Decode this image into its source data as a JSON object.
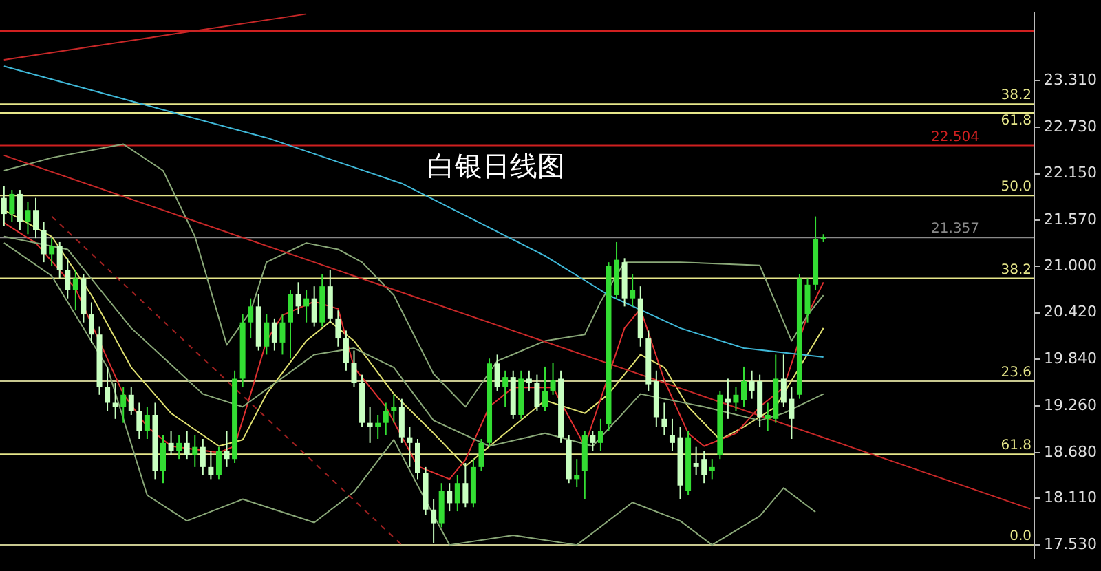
{
  "chart_data": {
    "type": "candlestick",
    "title": "白银日线图",
    "colors": [
      "#c8ffc0",
      "#33dd33",
      "#c8ffc0",
      "#33dd33",
      "#c8ffc0",
      "#c8ffc0",
      "#33dd33",
      "#c8ffc0",
      "#c8ffc0",
      "#33dd33",
      "#c8ffc0",
      "#c8ffc0",
      "#c8ffc0",
      "#c8ffc0",
      "#c8ffc0",
      "#33dd33",
      "#c8ffc0",
      "#c8ffc0",
      "#33dd33",
      "#c8ffc0",
      "#33dd33",
      "#c8ffc0",
      "#33dd33",
      "#c8ffc0",
      "#33dd33",
      "#c8ffc0",
      "#c8ffc0",
      "#33dd33",
      "#c8ffc0",
      "#33dd33",
      "#33dd33",
      "#33dd33",
      "#c8ffc0",
      "#33dd33",
      "#c8ffc0",
      "#33dd33",
      "#33dd33",
      "#c8ffc0",
      "#33dd33",
      "#c8ffc0",
      "#33dd33",
      "#c8ffc0",
      "#c8ffc0",
      "#c8ffc0",
      "#c8ffc0",
      "#c8ffc0",
      "#c8ffc0",
      "#33dd33",
      "#33dd33",
      "#33dd33",
      "#c8ffc0",
      "#c8ffc0",
      "#c8ffc0",
      "#c8ffc0",
      "#c8ffc0",
      "#33dd33",
      "#c8ffc0",
      "#33dd33",
      "#c8ffc0",
      "#33dd33",
      "#33dd33",
      "#33dd33",
      "#c8ffc0",
      "#33dd33",
      "#c8ffc0",
      "#33dd33",
      "#c8ffc0",
      "#c8ffc0",
      "#33dd33",
      "#33dd33",
      "#c8ffc0",
      "#c8ffc0",
      "#33dd33",
      "#33dd33",
      "#c8ffc0",
      "#33dd33",
      "#33dd33",
      "#33dd33",
      "#c8ffc0",
      "#33dd33",
      "#c8ffc0",
      "#c8ffc0",
      "#c8ffc0",
      "#c8ffc0",
      "#c8ffc0",
      "#c8ffc0",
      "#33dd33",
      "#c8ffc0",
      "#c8ffc0",
      "#33dd33",
      "#33dd33",
      "#c8ffc0",
      "#33dd33",
      "#33dd33",
      "#c8ffc0",
      "#c8ffc0",
      "#33dd33",
      "#33dd33",
      "#c8ffc0",
      "#c8ffc0",
      "#33dd33",
      "#33dd33",
      "#33dd33",
      "#33dd33",
      null,
      null,
      null,
      null,
      null,
      null,
      null,
      null,
      null,
      null,
      null,
      null,
      null,
      null,
      null,
      null,
      null,
      null,
      null,
      null,
      null,
      null,
      null,
      null,
      null,
      null
    ],
    "tick_labels": "y",
    "marker": "none",
    "categories": [
      null,
      null,
      null,
      null,
      null,
      null,
      null,
      null,
      null,
      null,
      null,
      null,
      null,
      null,
      null,
      null,
      null,
      null,
      null,
      null,
      null,
      null,
      null,
      null,
      null,
      null,
      null,
      null,
      null,
      null,
      null,
      null,
      null,
      null,
      null,
      null,
      null,
      null,
      null,
      null,
      null,
      null,
      null,
      null,
      null,
      null,
      null,
      null,
      null,
      null,
      null,
      null,
      null,
      null,
      null,
      null,
      null,
      null,
      null,
      null,
      null,
      null,
      null,
      null,
      null,
      null,
      null,
      null,
      null,
      null,
      null,
      null,
      null,
      null,
      null,
      null,
      null,
      null,
      null,
      null,
      null,
      null,
      null,
      null,
      null,
      null,
      null,
      null,
      null,
      null,
      null,
      null,
      null,
      null,
      null,
      null,
      null,
      null,
      null,
      null,
      null,
      null,
      null,
      null,
      null,
      null,
      null,
      null,
      null,
      null,
      null,
      null,
      null,
      null,
      null,
      null,
      null,
      null,
      null,
      null,
      null,
      null,
      null,
      null,
      null,
      null,
      null,
      null,
      null,
      null
    ],
    "ohlc": [
      [
        21.85,
        22.0,
        21.5,
        21.65
      ],
      [
        21.65,
        21.95,
        21.55,
        21.9
      ],
      [
        21.9,
        21.95,
        21.45,
        21.55
      ],
      [
        21.55,
        21.8,
        21.4,
        21.7
      ],
      [
        21.7,
        21.85,
        21.35,
        21.45
      ],
      [
        21.45,
        21.55,
        21.05,
        21.15
      ],
      [
        21.15,
        21.35,
        21.0,
        21.25
      ],
      [
        21.25,
        21.3,
        20.85,
        20.95
      ],
      [
        20.95,
        21.1,
        20.6,
        20.7
      ],
      [
        20.7,
        20.95,
        20.45,
        20.85
      ],
      [
        20.85,
        20.9,
        20.3,
        20.4
      ],
      [
        20.4,
        20.55,
        20.05,
        20.15
      ],
      [
        20.15,
        20.25,
        19.4,
        19.5
      ],
      [
        19.5,
        19.75,
        19.2,
        19.3
      ],
      [
        19.3,
        19.55,
        19.1,
        19.25
      ],
      [
        19.25,
        19.5,
        19.05,
        19.4
      ],
      [
        19.4,
        19.5,
        19.15,
        19.2
      ],
      [
        19.2,
        19.3,
        18.85,
        18.95
      ],
      [
        18.95,
        19.25,
        18.85,
        19.15
      ],
      [
        19.15,
        19.3,
        18.35,
        18.45
      ],
      [
        18.45,
        18.9,
        18.3,
        18.8
      ],
      [
        18.8,
        18.95,
        18.65,
        18.7
      ],
      [
        18.7,
        18.9,
        18.6,
        18.8
      ],
      [
        18.8,
        18.95,
        18.6,
        18.65
      ],
      [
        18.65,
        18.9,
        18.5,
        18.75
      ],
      [
        18.75,
        18.85,
        18.4,
        18.5
      ],
      [
        18.5,
        18.7,
        18.35,
        18.4
      ],
      [
        18.4,
        18.75,
        18.35,
        18.7
      ],
      [
        18.7,
        18.95,
        18.5,
        18.6
      ],
      [
        18.6,
        19.7,
        18.55,
        19.6
      ],
      [
        19.6,
        20.4,
        19.5,
        20.3
      ],
      [
        20.3,
        20.6,
        20.1,
        20.5
      ],
      [
        20.5,
        20.65,
        19.95,
        20.0
      ],
      [
        20.0,
        20.4,
        19.9,
        20.3
      ],
      [
        20.3,
        20.35,
        19.95,
        20.05
      ],
      [
        20.05,
        20.4,
        19.9,
        20.3
      ],
      [
        20.3,
        20.7,
        19.85,
        20.65
      ],
      [
        20.65,
        20.8,
        20.4,
        20.5
      ],
      [
        20.5,
        20.7,
        20.3,
        20.6
      ],
      [
        20.6,
        20.75,
        20.25,
        20.3
      ],
      [
        20.3,
        20.9,
        20.25,
        20.75
      ],
      [
        20.75,
        20.95,
        20.3,
        20.35
      ],
      [
        20.35,
        20.45,
        20.0,
        20.1
      ],
      [
        20.1,
        20.2,
        19.7,
        19.8
      ],
      [
        19.8,
        19.95,
        19.5,
        19.55
      ],
      [
        19.55,
        19.65,
        19.0,
        19.05
      ],
      [
        19.05,
        19.25,
        18.8,
        19.0
      ],
      [
        19.0,
        19.15,
        18.85,
        19.05
      ],
      [
        19.05,
        19.3,
        18.9,
        19.2
      ],
      [
        19.2,
        19.4,
        19.05,
        19.25
      ],
      [
        19.25,
        19.35,
        18.8,
        18.87
      ],
      [
        18.87,
        19.0,
        18.5,
        18.8
      ],
      [
        18.8,
        18.85,
        18.35,
        18.43
      ],
      [
        18.43,
        18.5,
        17.9,
        17.97
      ],
      [
        17.97,
        18.1,
        17.55,
        17.8
      ],
      [
        17.8,
        18.3,
        17.75,
        18.2
      ],
      [
        18.2,
        18.3,
        17.95,
        18.05
      ],
      [
        18.05,
        18.4,
        17.95,
        18.3
      ],
      [
        18.3,
        18.55,
        18.0,
        18.05
      ],
      [
        18.05,
        18.6,
        18.0,
        18.5
      ],
      [
        18.5,
        18.85,
        18.45,
        18.8
      ],
      [
        18.8,
        19.85,
        18.75,
        19.79
      ],
      [
        19.79,
        19.9,
        19.45,
        19.5
      ],
      [
        19.5,
        19.7,
        19.25,
        19.62
      ],
      [
        19.62,
        19.7,
        19.1,
        19.15
      ],
      [
        19.15,
        19.7,
        19.1,
        19.6
      ],
      [
        19.6,
        19.7,
        19.45,
        19.55
      ],
      [
        19.55,
        19.65,
        19.2,
        19.25
      ],
      [
        19.25,
        19.75,
        19.2,
        19.45
      ],
      [
        19.45,
        19.8,
        19.4,
        19.58
      ],
      [
        19.6,
        19.7,
        18.8,
        18.87
      ],
      [
        18.84,
        18.9,
        18.3,
        18.35
      ],
      [
        18.35,
        18.6,
        18.25,
        18.4
      ],
      [
        18.45,
        18.95,
        18.1,
        18.9
      ],
      [
        18.9,
        18.95,
        18.7,
        18.8
      ],
      [
        18.8,
        19.1,
        18.7,
        18.95
      ],
      [
        19.03,
        21.05,
        18.95,
        21.0
      ],
      [
        20.64,
        21.3,
        20.6,
        21.08
      ],
      [
        21.05,
        21.1,
        20.5,
        20.6
      ],
      [
        20.6,
        20.9,
        20.5,
        20.7
      ],
      [
        20.6,
        20.75,
        20.0,
        20.1
      ],
      [
        20.1,
        20.2,
        19.45,
        19.53
      ],
      [
        19.57,
        19.7,
        19.0,
        19.12
      ],
      [
        19.1,
        19.3,
        18.9,
        19.0
      ],
      [
        18.9,
        19.1,
        18.7,
        18.8
      ],
      [
        18.87,
        19.0,
        18.1,
        18.27
      ],
      [
        18.2,
        18.95,
        18.15,
        18.87
      ],
      [
        18.55,
        18.75,
        18.4,
        18.5
      ],
      [
        18.6,
        18.7,
        18.3,
        18.4
      ],
      [
        18.45,
        18.6,
        18.35,
        18.5
      ],
      [
        18.65,
        19.45,
        18.6,
        19.4
      ],
      [
        19.35,
        19.6,
        19.1,
        19.3
      ],
      [
        19.3,
        19.5,
        19.2,
        19.4
      ],
      [
        19.33,
        19.75,
        19.25,
        19.57
      ],
      [
        19.57,
        19.7,
        19.35,
        19.45
      ],
      [
        19.57,
        19.65,
        19.0,
        19.12
      ],
      [
        19.1,
        19.3,
        18.95,
        19.15
      ],
      [
        19.1,
        19.9,
        19.05,
        19.6
      ],
      [
        19.6,
        19.9,
        19.25,
        19.3
      ],
      [
        19.35,
        19.5,
        18.85,
        19.1
      ],
      [
        19.4,
        20.9,
        19.35,
        20.85
      ],
      [
        20.4,
        20.85,
        20.3,
        20.77
      ],
      [
        20.77,
        21.62,
        20.7,
        21.34
      ],
      [
        21.357,
        21.4,
        21.3,
        21.357
      ],
      null,
      null,
      null,
      null,
      null,
      null,
      null,
      null,
      null,
      null,
      null,
      null,
      null,
      null,
      null,
      null,
      null,
      null,
      null,
      null,
      null,
      null,
      null,
      null,
      null,
      null
    ],
    "series": [
      {
        "type": "line",
        "color": "#3fb8d8",
        "values": [
          23.49,
          null,
          null,
          null,
          null,
          null,
          null,
          null,
          null,
          null,
          null,
          null,
          null,
          null,
          null,
          null,
          null,
          null,
          null,
          null,
          null,
          22.92,
          null,
          null,
          null,
          null,
          null,
          null,
          null,
          null,
          null,
          null,
          null,
          22.6,
          null,
          null,
          null,
          null,
          null,
          null,
          null,
          null,
          null,
          null,
          null,
          null,
          null,
          null,
          null,
          null,
          22.03,
          null,
          null,
          null,
          null,
          null,
          null,
          null,
          null,
          null,
          null,
          null,
          null,
          null,
          null,
          null,
          null,
          null,
          21.13,
          null,
          null,
          null,
          null,
          null,
          null,
          null,
          20.64,
          null,
          null,
          null,
          null,
          null,
          null,
          null,
          null,
          20.23,
          null,
          null,
          null,
          null,
          null,
          null,
          null,
          19.98,
          null,
          null,
          null,
          null,
          null,
          null,
          null,
          null,
          null,
          19.87,
          null,
          null,
          null,
          null,
          null,
          null,
          null,
          null,
          null,
          null,
          null,
          null,
          null,
          null,
          null,
          null,
          null,
          null,
          null,
          null,
          null,
          null,
          null,
          null,
          null,
          null
        ]
      },
      {
        "type": "line",
        "color": "#c82828",
        "values": [
          22.38,
          null,
          null,
          null,
          null,
          null,
          null,
          null,
          null,
          null,
          null,
          null,
          null,
          null,
          null,
          null,
          null,
          null,
          null,
          null,
          null,
          null,
          null,
          null,
          null,
          null,
          null,
          null,
          null,
          null,
          null,
          null,
          null,
          null,
          null,
          null,
          null,
          null,
          null,
          null,
          null,
          null,
          null,
          null,
          null,
          null,
          null,
          null,
          null,
          null,
          null,
          null,
          null,
          null,
          null,
          null,
          null,
          null,
          null,
          null,
          null,
          null,
          null,
          null,
          null,
          null,
          null,
          null,
          null,
          null,
          null,
          null,
          null,
          null,
          null,
          null,
          null,
          null,
          null,
          null,
          null,
          null,
          null,
          null,
          null,
          null,
          null,
          null,
          null,
          null,
          null,
          null,
          null,
          null,
          null,
          null,
          null,
          null,
          null,
          null,
          null,
          null,
          null,
          null,
          null,
          null,
          null,
          null,
          null,
          null,
          null,
          null,
          null,
          null,
          null,
          null,
          null,
          null,
          null,
          null,
          null,
          null,
          null,
          null,
          null,
          null,
          null,
          null,
          null,
          17.98
        ]
      },
      {
        "type": "line",
        "color": "#c82828",
        "values": [
          23.57,
          null,
          null,
          null,
          null,
          null,
          null,
          null,
          null,
          null,
          null,
          null,
          null,
          null,
          null,
          null,
          null,
          null,
          null,
          null,
          null,
          null,
          null,
          null,
          null,
          null,
          null,
          null,
          null,
          null,
          null,
          null,
          null,
          null,
          null,
          null,
          null,
          null,
          24.14,
          null,
          null,
          null,
          null,
          null,
          null,
          null,
          null,
          null,
          null,
          null,
          null,
          null,
          null,
          null,
          null,
          null,
          null,
          null,
          null,
          null,
          null,
          null,
          null,
          null,
          null,
          null,
          null,
          null,
          null,
          null,
          null,
          null,
          null,
          null,
          null,
          null,
          null,
          null,
          null,
          null,
          null,
          null,
          null,
          null,
          null,
          null,
          null,
          null,
          null,
          null,
          null,
          null,
          null,
          null,
          null,
          null,
          null,
          null,
          null,
          null,
          null,
          null,
          null,
          null,
          null,
          null,
          null,
          null,
          null,
          null,
          null,
          null,
          null,
          null,
          null,
          null,
          null,
          null,
          null,
          null,
          null,
          null,
          null,
          null,
          null,
          null,
          null,
          null,
          null,
          null
        ]
      },
      {
        "type": "line",
        "color": "#a02020",
        "line_style": "dashed",
        "values": [
          null,
          null,
          null,
          null,
          null,
          null,
          21.62,
          null,
          null,
          null,
          null,
          null,
          null,
          null,
          null,
          null,
          null,
          null,
          null,
          null,
          null,
          null,
          null,
          null,
          null,
          null,
          null,
          null,
          null,
          null,
          null,
          null,
          null,
          null,
          null,
          null,
          null,
          null,
          null,
          null,
          null,
          null,
          null,
          null,
          null,
          null,
          null,
          null,
          null,
          null,
          17.53,
          null,
          null,
          null,
          null,
          null,
          null,
          null,
          null,
          null,
          null,
          null,
          null,
          null,
          null,
          null,
          null,
          null,
          null,
          null,
          null,
          null,
          null,
          null,
          null,
          null,
          null,
          null,
          null,
          null,
          null,
          null,
          null,
          null,
          null,
          null,
          null,
          null,
          null,
          null,
          null,
          null,
          null,
          null,
          null,
          null,
          null,
          null,
          null,
          null,
          null,
          null,
          null,
          null,
          null,
          null,
          null,
          null,
          null,
          null,
          null,
          null,
          null,
          null,
          null,
          null,
          null,
          null,
          null,
          null,
          null,
          null,
          null,
          null,
          null,
          null,
          null,
          null,
          null,
          null
        ]
      },
      {
        "type": "line",
        "color": "#8aa878",
        "values": [
          22.19,
          null,
          null,
          null,
          null,
          null,
          22.35,
          null,
          null,
          null,
          null,
          null,
          null,
          null,
          null,
          22.52,
          null,
          null,
          null,
          null,
          22.19,
          null,
          null,
          null,
          21.37,
          null,
          null,
          null,
          20.02,
          null,
          null,
          20.44,
          null,
          21.05,
          null,
          null,
          null,
          null,
          21.29,
          null,
          null,
          null,
          21.21,
          null,
          null,
          21.05,
          null,
          null,
          null,
          20.64,
          null,
          null,
          null,
          null,
          19.66,
          null,
          null,
          null,
          19.25,
          null,
          null,
          null,
          19.82,
          null,
          null,
          null,
          null,
          null,
          20.07,
          null,
          null,
          null,
          null,
          20.15,
          null,
          20.56,
          null,
          null,
          21.05,
          null,
          null,
          null,
          null,
          null,
          null,
          21.05,
          null,
          null,
          null,
          null,
          null,
          null,
          null,
          null,
          null,
          21.01,
          null,
          null,
          null,
          20.07,
          null,
          20.39,
          null,
          20.64,
          null,
          null,
          null,
          null,
          null,
          null,
          null,
          null,
          null,
          null,
          null,
          null,
          null,
          null,
          null,
          null,
          null,
          null,
          null,
          null,
          null,
          null,
          null,
          null,
          null,
          null
        ]
      },
      {
        "type": "line",
        "color": "#8aa878",
        "values": [
          21.29,
          null,
          null,
          null,
          null,
          null,
          20.88,
          null,
          null,
          null,
          null,
          null,
          null,
          19.74,
          null,
          null,
          null,
          null,
          18.15,
          null,
          null,
          null,
          null,
          17.83,
          null,
          null,
          null,
          null,
          null,
          null,
          18.1,
          null,
          null,
          null,
          null,
          null,
          null,
          null,
          null,
          17.81,
          null,
          null,
          null,
          null,
          18.19,
          null,
          null,
          null,
          null,
          18.84,
          null,
          null,
          18.27,
          null,
          null,
          null,
          17.53,
          null,
          null,
          null,
          null,
          null,
          null,
          null,
          17.65,
          null,
          null,
          null,
          null,
          null,
          null,
          null,
          17.53,
          null,
          null,
          null,
          null,
          null,
          null,
          18.06,
          null,
          null,
          null,
          null,
          null,
          17.83,
          null,
          null,
          null,
          17.53,
          null,
          null,
          null,
          null,
          null,
          17.89,
          null,
          null,
          18.24,
          null,
          null,
          null,
          17.94,
          null,
          null,
          null,
          null,
          null,
          null,
          null,
          null,
          null,
          null,
          null,
          null,
          null,
          null,
          null,
          null,
          null,
          null,
          null,
          null,
          null,
          null,
          null,
          null,
          null,
          null,
          null
        ]
      },
      {
        "type": "line",
        "color": "#8aa878",
        "values": [
          21.37,
          null,
          null,
          null,
          null,
          null,
          null,
          null,
          21.21,
          null,
          null,
          null,
          null,
          null,
          null,
          null,
          20.23,
          null,
          null,
          null,
          null,
          null,
          null,
          null,
          null,
          19.41,
          null,
          null,
          null,
          null,
          19.25,
          null,
          null,
          null,
          null,
          null,
          null,
          null,
          null,
          19.9,
          null,
          null,
          null,
          null,
          19.98,
          null,
          null,
          null,
          null,
          19.74,
          null,
          null,
          null,
          null,
          19.08,
          null,
          null,
          null,
          null,
          null,
          null,
          18.76,
          null,
          null,
          null,
          null,
          null,
          null,
          18.92,
          null,
          null,
          null,
          null,
          null,
          18.76,
          null,
          null,
          null,
          null,
          null,
          19.41,
          null,
          null,
          null,
          null,
          null,
          null,
          null,
          19.25,
          null,
          null,
          null,
          null,
          null,
          null,
          19.08,
          null,
          null,
          19.17,
          null,
          null,
          null,
          null,
          19.41,
          null,
          null,
          null,
          null,
          null,
          null,
          null,
          null,
          null,
          null,
          null,
          null,
          null,
          null,
          null,
          null,
          null,
          null,
          null,
          null,
          null,
          null,
          null,
          null,
          null,
          null
        ]
      },
      {
        "type": "line",
        "color": "#e03030",
        "values": [
          21.54,
          null,
          null,
          null,
          21.29,
          null,
          null,
          null,
          null,
          20.72,
          null,
          null,
          null,
          null,
          null,
          19.41,
          null,
          null,
          19.0,
          null,
          null,
          18.76,
          null,
          null,
          null,
          null,
          null,
          18.68,
          null,
          18.76,
          null,
          19.41,
          null,
          20.07,
          null,
          20.39,
          null,
          null,
          null,
          20.56,
          null,
          null,
          20.47,
          null,
          19.74,
          null,
          null,
          null,
          19.25,
          null,
          null,
          null,
          18.51,
          null,
          null,
          null,
          18.35,
          null,
          18.59,
          null,
          null,
          19.25,
          null,
          null,
          19.49,
          null,
          null,
          null,
          null,
          19.49,
          null,
          null,
          null,
          18.76,
          null,
          null,
          null,
          null,
          20.23,
          null,
          20.47,
          null,
          null,
          19.58,
          null,
          null,
          18.92,
          null,
          18.76,
          null,
          null,
          null,
          18.92,
          null,
          null,
          19.25,
          null,
          null,
          19.49,
          null,
          null,
          20.39,
          null,
          20.8,
          null,
          null,
          null,
          null,
          null,
          null,
          null,
          null,
          null,
          null,
          null,
          null,
          null,
          null,
          null,
          null,
          null,
          null,
          null,
          null,
          null,
          null,
          null,
          null,
          null,
          null
        ]
      },
      {
        "type": "line",
        "color": "#e0e070",
        "values": [
          21.7,
          null,
          null,
          null,
          null,
          null,
          21.37,
          null,
          null,
          null,
          null,
          20.64,
          null,
          null,
          null,
          null,
          19.74,
          null,
          null,
          null,
          null,
          19.17,
          null,
          null,
          null,
          null,
          null,
          18.76,
          null,
          null,
          18.84,
          null,
          null,
          19.41,
          null,
          null,
          null,
          null,
          20.07,
          null,
          null,
          20.31,
          null,
          null,
          20.07,
          null,
          null,
          null,
          null,
          19.41,
          null,
          null,
          null,
          null,
          18.92,
          null,
          null,
          null,
          18.51,
          null,
          null,
          null,
          18.84,
          null,
          null,
          null,
          null,
          null,
          19.33,
          null,
          null,
          null,
          null,
          19.17,
          null,
          null,
          19.41,
          null,
          null,
          null,
          19.9,
          null,
          null,
          19.74,
          null,
          null,
          19.25,
          null,
          null,
          null,
          18.84,
          null,
          null,
          19.0,
          null,
          null,
          null,
          19.25,
          null,
          null,
          19.74,
          null,
          null,
          20.23,
          null,
          null,
          null,
          null,
          null,
          null,
          null,
          null,
          null,
          null,
          null,
          null,
          null,
          null,
          null,
          null,
          null,
          null,
          null,
          null,
          null,
          null,
          null,
          null,
          null,
          null
        ]
      }
    ],
    "ref_lines": [
      {
        "axis": "y",
        "value": 23.93,
        "color": "#d02020"
      },
      {
        "axis": "y",
        "value": 23.02,
        "color": "#e6e68a"
      },
      {
        "axis": "y",
        "value": 22.91,
        "color": "#e6e68a"
      },
      {
        "axis": "y",
        "value": 22.504,
        "label": "22.504",
        "color": "#d02020"
      },
      {
        "axis": "y",
        "value": 21.88,
        "color": "#e6e68a"
      },
      {
        "axis": "y",
        "value": 21.357,
        "label": "21.357",
        "color": "#8a8a8a"
      },
      {
        "axis": "y",
        "value": 20.85,
        "color": "#e6e68a"
      },
      {
        "axis": "y",
        "value": 19.57,
        "color": "#c8c890"
      },
      {
        "axis": "y",
        "value": 18.66,
        "color": "#e6e68a"
      },
      {
        "axis": "y",
        "value": 17.53,
        "color": "#c8c890"
      }
    ],
    "annotations": [
      {
        "text": "38.2",
        "y": 23.02
      },
      {
        "text": "61.8",
        "y": 22.91
      },
      {
        "text": "50.0",
        "y": 21.88
      },
      {
        "text": "38.2",
        "y": 20.85
      },
      {
        "text": "23.6",
        "y": 19.57
      },
      {
        "text": "61.8",
        "y": 18.66
      },
      {
        "text": "0.0",
        "y": 17.53
      }
    ],
    "ylim": [
      17.37,
      24.15
    ],
    "yticks": [
      {
        "value": 23.31,
        "label": "23.310"
      },
      {
        "value": 22.73,
        "label": "22.730"
      },
      {
        "value": 22.15,
        "label": "22.150"
      },
      {
        "value": 21.57,
        "label": "21.570"
      },
      {
        "value": 21.0,
        "label": "21.000"
      },
      {
        "value": 20.42,
        "label": "20.420"
      },
      {
        "value": 19.84,
        "label": "19.840"
      },
      {
        "value": 19.26,
        "label": "19.260"
      },
      {
        "value": 18.68,
        "label": "18.680"
      },
      {
        "value": 18.11,
        "label": "18.110"
      },
      {
        "value": 17.53,
        "label": "17.530"
      }
    ]
  }
}
